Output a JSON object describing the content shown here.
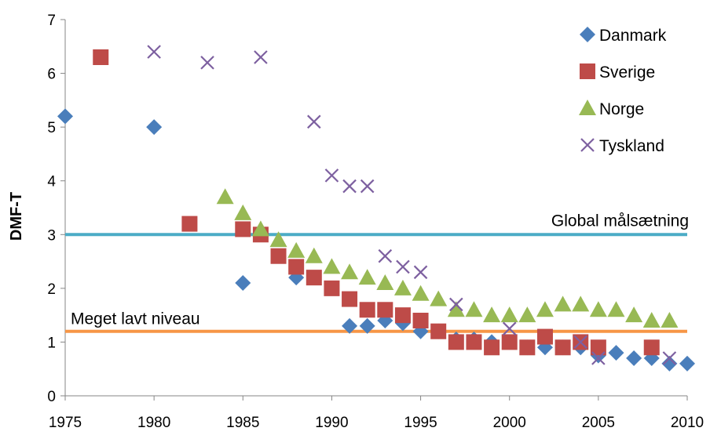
{
  "chart_data": {
    "type": "scatter",
    "ylabel": "DMF-T",
    "xlim": [
      1975,
      2010
    ],
    "ylim": [
      0,
      7
    ],
    "x_ticks": [
      "1975",
      "1980",
      "1985",
      "1990",
      "1995",
      "2000",
      "2005",
      "2010"
    ],
    "y_ticks": [
      "0",
      "1",
      "2",
      "3",
      "4",
      "5",
      "6",
      "7"
    ],
    "grid": false,
    "legend_position": "top-right",
    "series": [
      {
        "name": "Danmark",
        "marker": "diamond",
        "color": "#4a7ebb",
        "points": [
          [
            1975,
            5.2
          ],
          [
            1980,
            5.0
          ],
          [
            1985,
            2.1
          ],
          [
            1988,
            2.2
          ],
          [
            1991,
            1.3
          ],
          [
            1992,
            1.3
          ],
          [
            1993,
            1.4
          ],
          [
            1994,
            1.35
          ],
          [
            1995,
            1.2
          ],
          [
            1996,
            1.2
          ],
          [
            1997,
            1.05
          ],
          [
            1998,
            1.05
          ],
          [
            1999,
            1.0
          ],
          [
            2000,
            1.0
          ],
          [
            2001,
            0.9
          ],
          [
            2002,
            0.9
          ],
          [
            2003,
            0.9
          ],
          [
            2004,
            0.9
          ],
          [
            2005,
            0.75
          ],
          [
            2006,
            0.8
          ],
          [
            2007,
            0.7
          ],
          [
            2008,
            0.7
          ],
          [
            2009,
            0.6
          ],
          [
            2010,
            0.6
          ]
        ]
      },
      {
        "name": "Sverige",
        "marker": "square",
        "color": "#be4b48",
        "points": [
          [
            1977,
            6.3
          ],
          [
            1982,
            3.2
          ],
          [
            1985,
            3.1
          ],
          [
            1986,
            3.0
          ],
          [
            1987,
            2.6
          ],
          [
            1988,
            2.4
          ],
          [
            1989,
            2.2
          ],
          [
            1990,
            2.0
          ],
          [
            1991,
            1.8
          ],
          [
            1992,
            1.6
          ],
          [
            1993,
            1.6
          ],
          [
            1994,
            1.5
          ],
          [
            1995,
            1.4
          ],
          [
            1996,
            1.2
          ],
          [
            1997,
            1.0
          ],
          [
            1998,
            1.0
          ],
          [
            1999,
            0.9
          ],
          [
            2000,
            1.0
          ],
          [
            2001,
            0.9
          ],
          [
            2002,
            1.1
          ],
          [
            2003,
            0.9
          ],
          [
            2004,
            1.0
          ],
          [
            2005,
            0.9
          ],
          [
            2008,
            0.9
          ]
        ]
      },
      {
        "name": "Norge",
        "marker": "triangle",
        "color": "#98b954",
        "points": [
          [
            1984,
            3.7
          ],
          [
            1985,
            3.4
          ],
          [
            1986,
            3.1
          ],
          [
            1987,
            2.9
          ],
          [
            1988,
            2.7
          ],
          [
            1989,
            2.6
          ],
          [
            1990,
            2.4
          ],
          [
            1991,
            2.3
          ],
          [
            1992,
            2.2
          ],
          [
            1993,
            2.1
          ],
          [
            1994,
            2.0
          ],
          [
            1995,
            1.9
          ],
          [
            1996,
            1.8
          ],
          [
            1997,
            1.6
          ],
          [
            1998,
            1.6
          ],
          [
            1999,
            1.5
          ],
          [
            2000,
            1.5
          ],
          [
            2001,
            1.5
          ],
          [
            2002,
            1.6
          ],
          [
            2003,
            1.7
          ],
          [
            2004,
            1.7
          ],
          [
            2005,
            1.6
          ],
          [
            2006,
            1.6
          ],
          [
            2007,
            1.5
          ],
          [
            2008,
            1.4
          ],
          [
            2009,
            1.4
          ]
        ]
      },
      {
        "name": "Tyskland",
        "marker": "x",
        "color": "#7d60a0",
        "points": [
          [
            1980,
            6.4
          ],
          [
            1983,
            6.2
          ],
          [
            1986,
            6.3
          ],
          [
            1989,
            5.1
          ],
          [
            1990,
            4.1
          ],
          [
            1991,
            3.9
          ],
          [
            1992,
            3.9
          ],
          [
            1993,
            2.6
          ],
          [
            1994,
            2.4
          ],
          [
            1995,
            2.3
          ],
          [
            1997,
            1.7
          ],
          [
            2000,
            1.25
          ],
          [
            2004,
            1.0
          ],
          [
            2005,
            0.7
          ],
          [
            2009,
            0.7
          ]
        ]
      }
    ],
    "reference_lines": [
      {
        "label": "Global målsætning",
        "y": 3.0,
        "color": "#4bacc6"
      },
      {
        "label": "Meget lavt niveau",
        "y": 1.2,
        "color": "#f79646"
      }
    ]
  }
}
